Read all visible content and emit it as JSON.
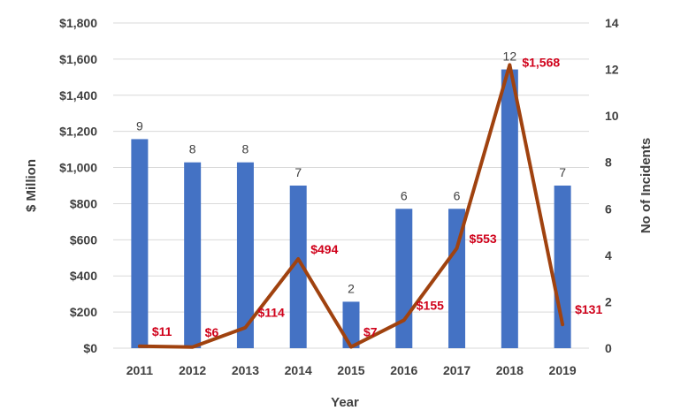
{
  "chart_data": {
    "type": "bar",
    "categories": [
      "2011",
      "2012",
      "2013",
      "2014",
      "2015",
      "2016",
      "2017",
      "2018",
      "2019"
    ],
    "series": [
      {
        "type": "bar",
        "axis": "right",
        "color": "#4472c4",
        "values": [
          9,
          8,
          8,
          7,
          2,
          6,
          6,
          12,
          7
        ],
        "labels": [
          "9",
          "8",
          "8",
          "7",
          "2",
          "6",
          "6",
          "12",
          "7"
        ]
      },
      {
        "type": "line",
        "axis": "left",
        "color": "#a0420f",
        "values": [
          11,
          6,
          114,
          494,
          7,
          155,
          553,
          1568,
          131
        ],
        "labels": [
          "$11",
          "$6",
          "$114",
          "$494",
          "$7",
          "$155",
          "$553",
          "$1,568",
          "$131"
        ]
      }
    ],
    "xlabel": "Year",
    "ylabel_left": "$ Million",
    "ylabel_right": "No of Incidents",
    "ylim_left": [
      0,
      1800
    ],
    "ylim_right": [
      0,
      14
    ],
    "left_ticks": [
      "$0",
      "$200",
      "$400",
      "$600",
      "$800",
      "$1,000",
      "$1,200",
      "$1,400",
      "$1,600",
      "$1,800"
    ],
    "right_ticks": [
      "0",
      "2",
      "4",
      "6",
      "8",
      "10",
      "12",
      "14"
    ],
    "grid": true,
    "label_color": "#d0021b"
  }
}
